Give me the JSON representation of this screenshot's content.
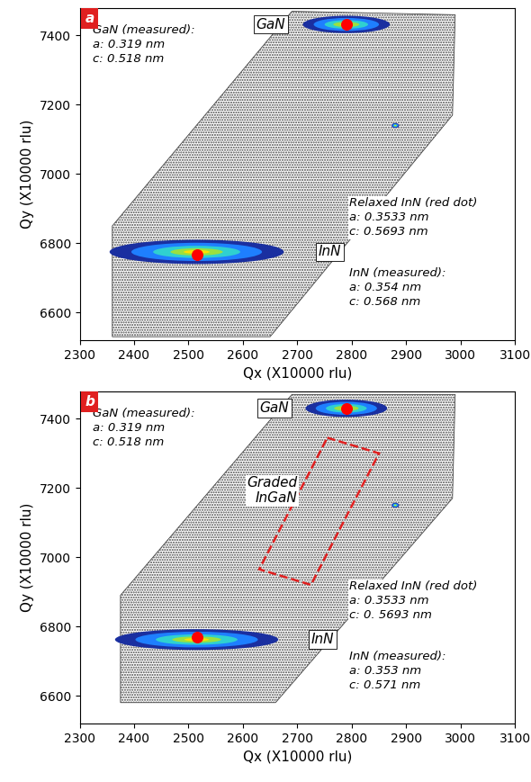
{
  "chart_data": [
    {
      "type": "scatter",
      "panel_label": "a",
      "xlabel": "Qx (X10000 rlu)",
      "ylabel": "Qy (X10000 rlu)",
      "xlim": [
        2300,
        3100
      ],
      "ylim": [
        6520,
        7480
      ],
      "xticks": [
        2300,
        2400,
        2500,
        2600,
        2700,
        2800,
        2900,
        3000,
        3100
      ],
      "yticks": [
        6600,
        6800,
        7000,
        7200,
        7400
      ],
      "scan_region": {
        "x": [
          2360,
          2650,
          2985,
          2990,
          2690,
          2360
        ],
        "y": [
          6530,
          6530,
          7170,
          7460,
          7470,
          6850
        ]
      },
      "peaks": [
        {
          "name": "GaN",
          "x": 2790,
          "y": 7432,
          "width": 160,
          "height": 50
        },
        {
          "name": "InN",
          "x": 2515,
          "y": 6775,
          "width": 320,
          "height": 70
        },
        {
          "x": 2880,
          "y": 7140,
          "width": 14,
          "height": 14
        }
      ],
      "markers": {
        "x": [
          2790,
          2515
        ],
        "y": [
          7432,
          6768
        ],
        "color": "#ff0000"
      },
      "annotations": [
        "GaN (measured):\na: 0.319 nm\nc: 0.518 nm",
        "Relaxed InN (red dot)\na: 0.3533 nm\nc: 0.5693 nm",
        "InN (measured):\na: 0.354 nm\nc: 0.568 nm"
      ]
    },
    {
      "type": "scatter",
      "panel_label": "b",
      "xlabel": "Qx (X10000 rlu)",
      "ylabel": "Qy (X10000 rlu)",
      "xlim": [
        2300,
        3100
      ],
      "ylim": [
        6520,
        7480
      ],
      "xticks": [
        2300,
        2400,
        2500,
        2600,
        2700,
        2800,
        2900,
        3000,
        3100
      ],
      "yticks": [
        6600,
        6800,
        7000,
        7200,
        7400
      ],
      "scan_region": {
        "x": [
          2375,
          2660,
          2985,
          2990,
          2690,
          2375
        ],
        "y": [
          6580,
          6580,
          7170,
          7470,
          7470,
          6890
        ]
      },
      "peaks": [
        {
          "name": "GaN",
          "x": 2790,
          "y": 7430,
          "width": 150,
          "height": 50
        },
        {
          "name": "InN",
          "x": 2515,
          "y": 6762,
          "width": 300,
          "height": 60
        },
        {
          "x": 2880,
          "y": 7150,
          "width": 14,
          "height": 14
        }
      ],
      "markers": {
        "x": [
          2790,
          2515
        ],
        "y": [
          7430,
          6768
        ],
        "color": "#ff0000"
      },
      "region": {
        "label": "Graded\nInGaN",
        "x": [
          2755,
          2850,
          2725,
          2630
        ],
        "y": [
          7345,
          7300,
          6920,
          6965
        ],
        "color": "#e02020",
        "line_style": "dashed"
      },
      "annotations": [
        "GaN (measured):\na: 0.319 nm\nc: 0.518 nm",
        "Relaxed InN (red dot)\na: 0.3533 nm\nc: 0. 5693 nm",
        "InN (measured):\na: 0.353 nm\nc: 0.571 nm"
      ]
    }
  ]
}
